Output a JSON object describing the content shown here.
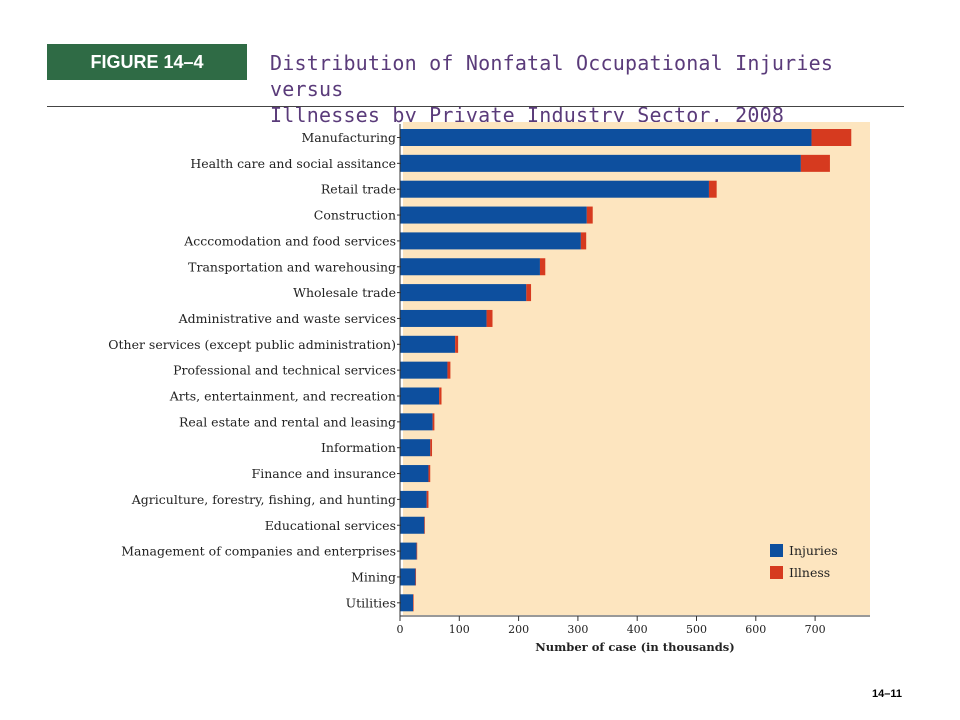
{
  "header": {
    "figure_label": "FIGURE 14–4",
    "title_line1": "Distribution of Nonfatal Occupational Injuries versus",
    "title_line2": "Illnesses by Private Industry Sector, 2008"
  },
  "footer": {
    "slide_number": "14–11"
  },
  "chart_data": {
    "type": "bar",
    "orientation": "horizontal",
    "stacked": true,
    "title": "Distribution of Nonfatal Occupational Injuries versus Illnesses by Private Industry Sector, 2008",
    "xlabel": "Number of case (in thousands)",
    "ylabel": "",
    "xlim": [
      0,
      800
    ],
    "xticks": [
      0,
      100,
      200,
      300,
      400,
      500,
      600,
      700
    ],
    "grid": false,
    "legend_position": "bottom-right",
    "categories": [
      "Manufacturing",
      "Health care and social assitance",
      "Retail trade",
      "Construction",
      "Acccomodation and food services",
      "Transportation and warehousing",
      "Wholesale trade",
      "Administrative and waste services",
      "Other services (except public administration)",
      "Professional and technical services",
      "Arts, entertainment, and recreation",
      "Real estate and rental and leasing",
      "Information",
      "Finance and insurance",
      "Agriculture, forestry, fishing, and hunting",
      "Educational services",
      "Management of companies and enterprises",
      "Mining",
      "Utilities"
    ],
    "series": [
      {
        "name": "Injuries",
        "color": "#0d4f9e",
        "values": [
          694,
          676,
          521,
          315,
          305,
          236,
          213,
          146,
          93,
          80,
          66,
          55,
          51,
          48,
          45,
          41,
          28,
          26,
          22
        ]
      },
      {
        "name": "Illness",
        "color": "#d63a1f",
        "values": [
          67,
          49,
          13,
          10,
          9,
          9,
          8,
          10,
          5,
          5,
          4,
          3,
          3,
          3,
          3,
          1,
          1,
          1,
          1
        ]
      }
    ]
  }
}
